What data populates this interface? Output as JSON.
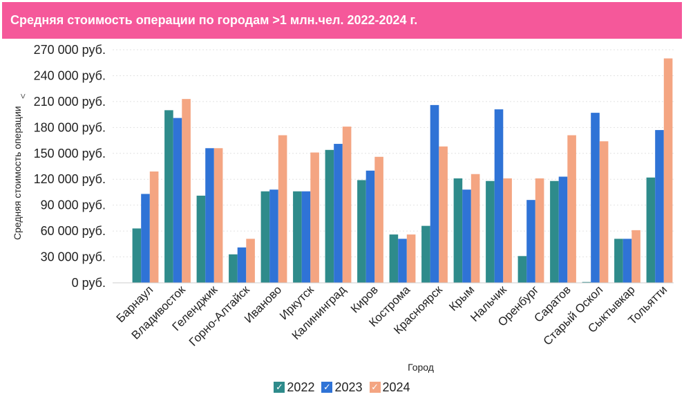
{
  "title": "Средняя стоимость операции по городам >1 млн.чел. 2022-2024 г.",
  "legend_check_glyph": "✓",
  "chart_data": {
    "type": "bar",
    "title": "Средняя стоимость операции по городам >1 млн.чел. 2022-2024 г.",
    "xlabel": "Город",
    "ylabel": "Средняя стоимость операции",
    "ylabel_arrow": ">",
    "ylim": [
      0,
      270000
    ],
    "yticks": [
      0,
      30000,
      60000,
      90000,
      120000,
      150000,
      180000,
      210000,
      240000,
      270000
    ],
    "ytick_labels": [
      "0 руб.",
      "30 000 руб.",
      "60 000 руб.",
      "90 000 руб.",
      "120 000 руб.",
      "150 000 руб.",
      "180 000 руб.",
      "210 000 руб.",
      "240 000 руб.",
      "270 000 руб."
    ],
    "grid": true,
    "legend_position": "bottom-center",
    "categories": [
      "Барнаул",
      "Владивосток",
      "Геленджик",
      "Горно-Алтайск",
      "Иваново",
      "Иркутск",
      "Калининград",
      "Киров",
      "Кострома",
      "Красноярск",
      "Крым",
      "Нальчик",
      "Оренбург",
      "Саратов",
      "Старый Оскол",
      "Сыктывкар",
      "Тольятти"
    ],
    "series": [
      {
        "name": "2022",
        "color": "#2e8b8b",
        "values": [
          63000,
          200000,
          101000,
          33000,
          106000,
          106000,
          154000,
          119000,
          56000,
          66000,
          121000,
          118000,
          31000,
          118000,
          1000,
          51000,
          122000
        ]
      },
      {
        "name": "2023",
        "color": "#2f73d6",
        "values": [
          103000,
          191000,
          156000,
          41000,
          108000,
          106000,
          161000,
          130000,
          51000,
          206000,
          108000,
          201000,
          96000,
          123000,
          197000,
          51000,
          177000
        ]
      },
      {
        "name": "2024",
        "color": "#f4a582",
        "values": [
          129000,
          213000,
          156000,
          51000,
          171000,
          151000,
          181000,
          146000,
          56000,
          158000,
          126000,
          121000,
          121000,
          171000,
          164000,
          61000,
          260000
        ]
      }
    ]
  }
}
